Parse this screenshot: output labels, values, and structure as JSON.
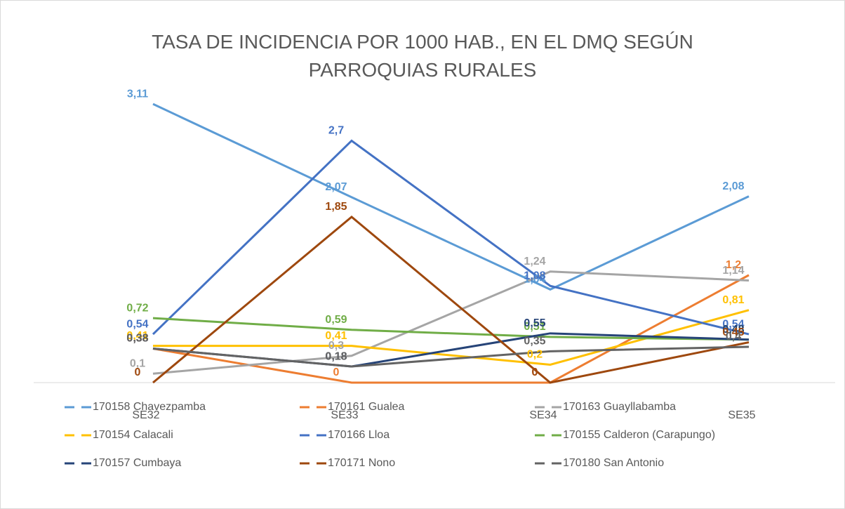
{
  "chart_data": {
    "type": "line",
    "title": "TASA DE INCIDENCIA POR 1000 HAB., EN EL DMQ SEGÚN PARROQUIAS RURALES",
    "categories": [
      "SE32",
      "SE33",
      "SE34",
      "SE35"
    ],
    "ylim": [
      0,
      3.5
    ],
    "series": [
      {
        "name": "170158 Chavezpamba",
        "color": "#5b9bd5",
        "values": [
          3.11,
          2.07,
          1.04,
          2.08
        ],
        "value_labels": [
          "3,11",
          "2,07",
          "1,04",
          "2,08"
        ]
      },
      {
        "name": "170161 Gualea",
        "color": "#ed7d31",
        "values": [
          0.38,
          0,
          0,
          1.2
        ],
        "value_labels": [
          "0,38",
          "0",
          "0",
          "1,2"
        ]
      },
      {
        "name": "170163 Guayllabamba",
        "color": "#a5a5a5",
        "values": [
          0.1,
          0.3,
          1.24,
          1.14
        ],
        "value_labels": [
          "0,1",
          "0,3",
          "1,24",
          "1,14"
        ]
      },
      {
        "name": "170154 Calacali",
        "color": "#ffc000",
        "values": [
          0.41,
          0.41,
          0.2,
          0.81
        ],
        "value_labels": [
          "0,41",
          "0,41",
          "0,2",
          "0,81"
        ]
      },
      {
        "name": "170166 Lloa",
        "color": "#4472c4",
        "values": [
          0.54,
          2.7,
          1.08,
          0.54
        ],
        "value_labels": [
          "0,54",
          "2,7",
          "1,08",
          "0,54"
        ]
      },
      {
        "name": "170155 Calderon (Carapungo)",
        "color": "#70ad47",
        "values": [
          0.72,
          0.59,
          0.51,
          0.48
        ],
        "value_labels": [
          "0,72",
          "0,59",
          "0,51",
          "0,48"
        ]
      },
      {
        "name": "170157 Cumbaya",
        "color": "#264478",
        "values": [
          0.38,
          0.18,
          0.55,
          0.48
        ],
        "value_labels": [
          "0,38",
          "0,18",
          "0,55",
          "0,48"
        ]
      },
      {
        "name": "170171 Nono",
        "color": "#9e480e",
        "values": [
          0,
          1.85,
          0,
          0.45
        ],
        "value_labels": [
          "0",
          "1,85",
          "0",
          "0,45"
        ]
      },
      {
        "name": "170180 San Antonio",
        "color": "#636363",
        "values": [
          0.38,
          0.18,
          0.35,
          0.4
        ],
        "value_labels": [
          "0,38",
          "0,18",
          "0,35",
          "0,4"
        ]
      }
    ]
  }
}
